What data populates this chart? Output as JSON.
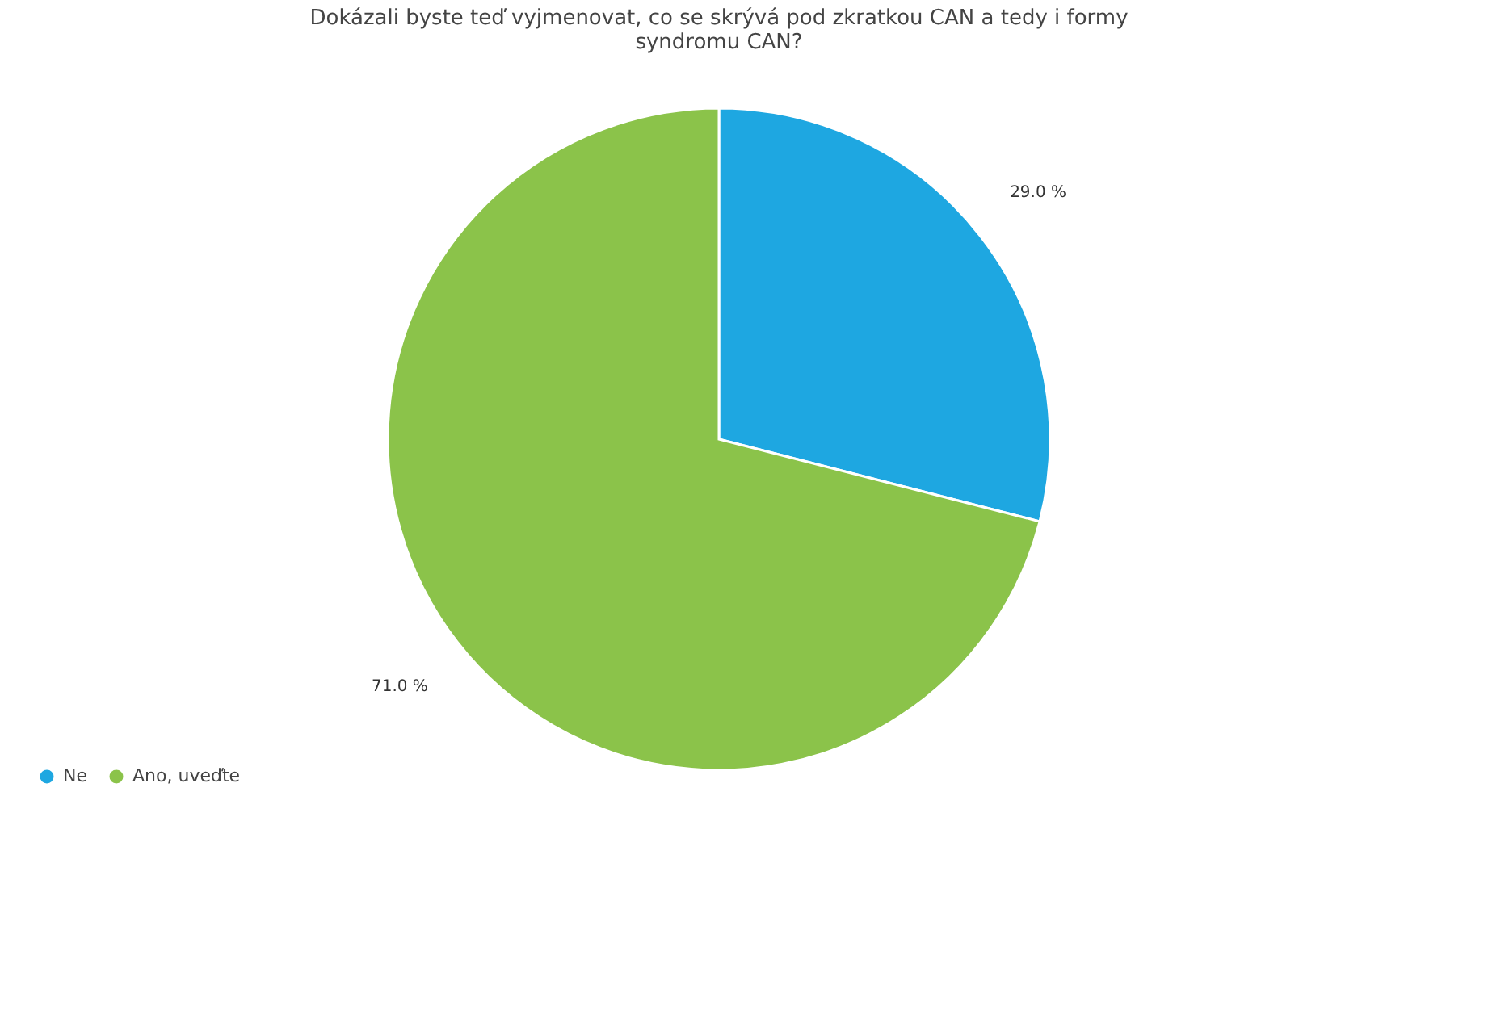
{
  "chart_data": {
    "type": "pie",
    "title": "Dokázali byste teď vyjmenovat, co se skrývá pod zkratkou CAN a tedy i formy syndromu CAN?",
    "categories": [
      "Ne",
      "Ano, uveďte"
    ],
    "values": [
      29.0,
      71.0
    ],
    "colors": [
      "#1ea7e1",
      "#8bc34a"
    ],
    "value_labels": [
      "29.0 %",
      "71.0 %"
    ],
    "legend": "bottom left"
  }
}
